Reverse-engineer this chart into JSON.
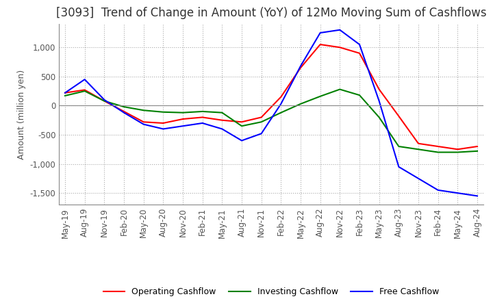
{
  "title": "[3093]  Trend of Change in Amount (YoY) of 12Mo Moving Sum of Cashflows",
  "ylabel": "Amount (million yen)",
  "ylim": [
    -1700,
    1400
  ],
  "yticks": [
    -1500,
    -1000,
    -500,
    0,
    500,
    1000
  ],
  "x_labels": [
    "May-19",
    "Aug-19",
    "Nov-19",
    "Feb-20",
    "May-20",
    "Aug-20",
    "Nov-20",
    "Feb-21",
    "May-21",
    "Aug-21",
    "Nov-21",
    "Feb-22",
    "May-22",
    "Aug-22",
    "Nov-22",
    "Feb-23",
    "May-23",
    "Aug-23",
    "Nov-23",
    "Feb-24",
    "May-24",
    "Aug-24"
  ],
  "operating_cashflow": [
    220,
    270,
    80,
    -100,
    -280,
    -300,
    -230,
    -200,
    -250,
    -280,
    -200,
    150,
    650,
    1050,
    1000,
    900,
    280,
    -180,
    -650,
    -700,
    -750,
    -700
  ],
  "investing_cashflow": [
    170,
    250,
    80,
    -20,
    -80,
    -110,
    -120,
    -100,
    -120,
    -350,
    -280,
    -120,
    30,
    160,
    280,
    180,
    -200,
    -700,
    -750,
    -800,
    -800,
    -780
  ],
  "free_cashflow": [
    220,
    450,
    100,
    -120,
    -320,
    -400,
    -350,
    -300,
    -400,
    -600,
    -480,
    30,
    680,
    1250,
    1300,
    1050,
    80,
    -1050,
    -1250,
    -1450,
    -1500,
    -1550
  ],
  "operating_color": "#FF0000",
  "investing_color": "#008000",
  "free_color": "#0000FF",
  "background_color": "#FFFFFF",
  "grid_color": "#AAAAAA",
  "zeroline_color": "#888888",
  "title_fontsize": 12,
  "label_fontsize": 9,
  "tick_fontsize": 8.5
}
